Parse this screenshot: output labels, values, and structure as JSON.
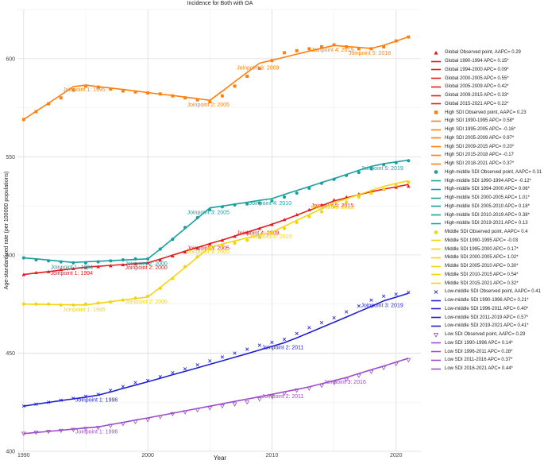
{
  "chart_data": {
    "type": "line",
    "title": "Incidence for Both with OA",
    "xlabel": "Year",
    "ylabel": "Age-standardized rate (per 100000 populations)",
    "xlim": [
      1989.5,
      2022
    ],
    "ylim": [
      400,
      625
    ],
    "x_ticks": [
      1990,
      2000,
      2010,
      2020
    ],
    "y_ticks": [
      400,
      450,
      500,
      550,
      600
    ],
    "grid": true,
    "legend_position": "right",
    "series": [
      {
        "group": "Global",
        "color": "#e41a1c",
        "marker": "triangle",
        "x": [
          1990,
          1991,
          1992,
          1993,
          1994,
          1995,
          1996,
          1997,
          1998,
          1999,
          2000,
          2001,
          2002,
          2003,
          2004,
          2005,
          2006,
          2007,
          2008,
          2009,
          2010,
          2011,
          2012,
          2013,
          2014,
          2015,
          2016,
          2017,
          2018,
          2019,
          2020,
          2021
        ],
        "observed": [
          490,
          491,
          491.5,
          492.5,
          493,
          493.5,
          494,
          494.5,
          495,
          495.5,
          496,
          497.5,
          499.5,
          501.5,
          503.5,
          505.5,
          507.5,
          509.5,
          511.5,
          513.5,
          515.5,
          518,
          520.5,
          523,
          525.5,
          528,
          529.5,
          531,
          532.5,
          533.5,
          534.5,
          535
        ],
        "fitted": [
          490,
          490.8,
          491.5,
          492.3,
          493,
          493.8,
          494.2,
          494.7,
          495.1,
          495.6,
          496,
          497.9,
          499.9,
          501.9,
          503.8,
          505.8,
          507.6,
          509.6,
          511.6,
          513.6,
          515.6,
          517.9,
          520.3,
          522.7,
          525.1,
          527.5,
          529.1,
          530.7,
          532.2,
          533.5,
          534.7,
          535.9
        ],
        "annotations": [
          {
            "text": "Joinpoint 1: 1994",
            "x": 1994,
            "y": 493
          },
          {
            "text": "Joinpoint 2: 2000",
            "x": 2000,
            "y": 496
          },
          {
            "text": "Joinpoint 3: 2005",
            "x": 2005,
            "y": 505.8
          },
          {
            "text": "Joinpoint 4: 2009",
            "x": 2009,
            "y": 513.6
          },
          {
            "text": "Joinpoint 5: 2015",
            "x": 2015,
            "y": 527.5
          }
        ]
      },
      {
        "group": "High SDI",
        "color": "#ff7f0e",
        "marker": "square",
        "x": [
          1990,
          1991,
          1992,
          1993,
          1994,
          1995,
          1996,
          1997,
          1998,
          1999,
          2000,
          2001,
          2002,
          2003,
          2004,
          2005,
          2006,
          2007,
          2008,
          2009,
          2010,
          2011,
          2012,
          2013,
          2014,
          2015,
          2016,
          2017,
          2018,
          2019,
          2020,
          2021
        ],
        "observed": [
          569,
          573,
          577,
          580,
          584,
          586,
          585.5,
          584.5,
          583.5,
          583,
          582.5,
          582,
          581,
          580,
          579,
          578,
          581,
          586,
          591,
          595,
          599,
          603,
          604,
          605,
          606,
          607,
          606,
          605,
          605,
          606,
          609,
          611
        ],
        "fitted": [
          569,
          573.2,
          577.3,
          581.5,
          585.7,
          586.5,
          585.7,
          585,
          584.3,
          583.5,
          582.7,
          581.9,
          581.2,
          580.4,
          579.6,
          578.8,
          583.4,
          588.2,
          593,
          597.7,
          599.2,
          600.7,
          602.3,
          603.8,
          605.3,
          606.7,
          606.2,
          605.7,
          605.2,
          606.8,
          608.9,
          611.1
        ],
        "annotations": [
          {
            "text": "Joinpoint 1: 1995",
            "x": 1995,
            "y": 586.5
          },
          {
            "text": "Joinpoint 2: 2005",
            "x": 2005,
            "y": 578.8
          },
          {
            "text": "Joinpoint 3: 2009",
            "x": 2009,
            "y": 597.7
          },
          {
            "text": "Joinpoint 4: 2015",
            "x": 2015,
            "y": 606.7
          },
          {
            "text": "Joinpoint 5: 2018",
            "x": 2018,
            "y": 605.2
          }
        ]
      },
      {
        "group": "High-middle SDI",
        "color": "#1a9e9e",
        "marker": "circle",
        "x": [
          1990,
          1991,
          1992,
          1993,
          1994,
          1995,
          1996,
          1997,
          1998,
          1999,
          2000,
          2001,
          2002,
          2003,
          2004,
          2005,
          2006,
          2007,
          2008,
          2009,
          2010,
          2011,
          2012,
          2013,
          2014,
          2015,
          2016,
          2017,
          2018,
          2019,
          2020,
          2021
        ],
        "observed": [
          498.5,
          497.5,
          497,
          496.5,
          496,
          496,
          496.5,
          497,
          497.5,
          498,
          498,
          503,
          508,
          514,
          519,
          523,
          524.5,
          525.5,
          526,
          526.5,
          527.5,
          529.5,
          531.5,
          534,
          536.5,
          538.5,
          540.5,
          542,
          544,
          546,
          547,
          548
        ],
        "fitted": [
          498.5,
          498,
          497.4,
          496.8,
          496.2,
          496.5,
          496.8,
          497.1,
          497.4,
          497.7,
          498,
          503,
          508.2,
          513.4,
          518.7,
          524,
          524.9,
          525.9,
          526.8,
          527.8,
          528.7,
          530.8,
          532.8,
          534.8,
          536.9,
          538.9,
          541,
          543.1,
          545.1,
          546.5,
          547.4,
          548.3
        ],
        "annotations": [
          {
            "text": "Joinpoint 1: 1994",
            "x": 1994,
            "y": 496.2
          },
          {
            "text": "Joinpoint 2: 2000",
            "x": 2000,
            "y": 498
          },
          {
            "text": "Joinpoint 3: 2005",
            "x": 2005,
            "y": 524
          },
          {
            "text": "Joinpoint 4: 2010",
            "x": 2010,
            "y": 528.7
          },
          {
            "text": "Joinpoint 5: 2019",
            "x": 2019,
            "y": 546.5
          }
        ]
      },
      {
        "group": "Middle SDI",
        "color": "#f4d40f",
        "marker": "circle",
        "x": [
          1990,
          1991,
          1992,
          1993,
          1994,
          1995,
          1996,
          1997,
          1998,
          1999,
          2000,
          2001,
          2002,
          2003,
          2004,
          2005,
          2006,
          2007,
          2008,
          2009,
          2010,
          2011,
          2012,
          2013,
          2014,
          2015,
          2016,
          2017,
          2018,
          2019,
          2020,
          2021
        ],
        "observed": [
          475,
          475,
          475,
          474.5,
          474.5,
          475,
          475.5,
          476,
          477,
          478,
          479,
          483,
          488,
          494,
          499,
          503,
          505,
          506,
          507.5,
          509,
          511,
          513.5,
          516.5,
          519.5,
          522,
          524.5,
          527,
          529.5,
          531.5,
          533.5,
          535.5,
          537
        ],
        "fitted": [
          475,
          474.9,
          474.8,
          474.7,
          474.6,
          474.5,
          475.4,
          476.2,
          477,
          477.8,
          478.6,
          483.5,
          488.5,
          493.6,
          498.8,
          504.1,
          505.6,
          507.1,
          508.7,
          510.2,
          511.7,
          514.6,
          517.6,
          520.6,
          523.6,
          526.6,
          528.6,
          530.7,
          532.8,
          534.9,
          536.4,
          537.8
        ],
        "annotations": [
          {
            "text": "Joinpoint 1: 1995",
            "x": 1995,
            "y": 474.5
          },
          {
            "text": "Joinpoint 2: 2000",
            "x": 2000,
            "y": 478.6
          },
          {
            "text": "Joinpoint 3: 2005",
            "x": 2005,
            "y": 504.1
          },
          {
            "text": "Joinpoint 4: 2010",
            "x": 2010,
            "y": 511.7
          },
          {
            "text": "Joinpoint 5: 2015",
            "x": 2015,
            "y": 526.6
          }
        ]
      },
      {
        "group": "Low-middle SDI",
        "color": "#1f1fd6",
        "marker": "x",
        "x": [
          1990,
          1991,
          1992,
          1993,
          1994,
          1995,
          1996,
          1997,
          1998,
          1999,
          2000,
          2001,
          2002,
          2003,
          2004,
          2005,
          2006,
          2007,
          2008,
          2009,
          2010,
          2011,
          2012,
          2013,
          2014,
          2015,
          2016,
          2017,
          2018,
          2019,
          2020,
          2021
        ],
        "observed": [
          423,
          424,
          425,
          426,
          427,
          428,
          429,
          431,
          433,
          435,
          436,
          438,
          440,
          442,
          444,
          446,
          448,
          450,
          452,
          454,
          455.5,
          457,
          460,
          463,
          465.5,
          468,
          471,
          474,
          477,
          479,
          480,
          481
        ],
        "fitted": [
          423,
          424,
          424.9,
          425.8,
          426.7,
          427.6,
          428.6,
          430.2,
          432,
          433.7,
          435.4,
          437.2,
          439,
          440.7,
          442.5,
          444.3,
          446.1,
          447.9,
          449.7,
          451.6,
          453.4,
          455.3,
          457.8,
          460.4,
          463.1,
          465.7,
          468.4,
          471.1,
          473.8,
          476.6,
          478.5,
          480.5
        ],
        "annotations": [
          {
            "text": "Joinpoint 1: 1996",
            "x": 1996,
            "y": 428.6
          },
          {
            "text": "Joinpoint 2: 2011",
            "x": 2011,
            "y": 455.3
          },
          {
            "text": "Joinpoint 3: 2019",
            "x": 2019,
            "y": 476.6
          }
        ]
      },
      {
        "group": "Low SDI",
        "color": "#9b4dca",
        "marker": "triangle-down",
        "x": [
          1990,
          1991,
          1992,
          1993,
          1994,
          1995,
          1996,
          1997,
          1998,
          1999,
          2000,
          2001,
          2002,
          2003,
          2004,
          2005,
          2006,
          2007,
          2008,
          2009,
          2010,
          2011,
          2012,
          2013,
          2014,
          2015,
          2016,
          2017,
          2018,
          2019,
          2020,
          2021
        ],
        "observed": [
          409,
          409.5,
          410,
          410.5,
          411,
          411.5,
          412,
          413,
          414,
          415,
          416,
          417.5,
          419,
          420,
          421,
          422,
          423,
          424,
          425,
          426.5,
          428,
          429.5,
          431,
          432,
          433.5,
          435,
          436.5,
          438.5,
          440.5,
          442.5,
          444.5,
          446.5
        ],
        "fitted": [
          409,
          409.6,
          410.1,
          410.7,
          411.3,
          411.9,
          412.4,
          413.6,
          414.7,
          415.9,
          417,
          418.2,
          419.4,
          420.6,
          421.8,
          423,
          424.2,
          425.4,
          426.6,
          427.8,
          429,
          430.3,
          431.5,
          432.8,
          434.4,
          436,
          437.6,
          439.6,
          441.5,
          443.4,
          445.4,
          447.4
        ],
        "annotations": [
          {
            "text": "Joinpoint 1: 1996",
            "x": 1996,
            "y": 412.4
          },
          {
            "text": "Joinpoint 2: 2011",
            "x": 2011,
            "y": 430.3
          },
          {
            "text": "Joinpoint 3: 2016",
            "x": 2016,
            "y": 437.6
          }
        ]
      }
    ],
    "legend": [
      {
        "label": "Global Observed point, AAPC= 0.29",
        "color": "#e41a1c",
        "kind": "triangle"
      },
      {
        "label": "Global 1990-1994 APC= 0.15*",
        "color": "#e41a1c",
        "kind": "line"
      },
      {
        "label": "Global 1994-2000 APC= 0.09*",
        "color": "#e41a1c",
        "kind": "line"
      },
      {
        "label": "Global 2000-2005 APC= 0.55*",
        "color": "#e41a1c",
        "kind": "line"
      },
      {
        "label": "Global 2005-2009 APC= 0.42*",
        "color": "#e41a1c",
        "kind": "line"
      },
      {
        "label": "Global 2009-2015 APC= 0.33*",
        "color": "#e41a1c",
        "kind": "line"
      },
      {
        "label": "Global 2015-2021 APC= 0.22*",
        "color": "#e41a1c",
        "kind": "line"
      },
      {
        "label": "High SDI Observed point, AAPC= 0.23",
        "color": "#ff7f0e",
        "kind": "square"
      },
      {
        "label": "High SDI 1990-1995 APC= 0.58*",
        "color": "#ff7f0e",
        "kind": "line"
      },
      {
        "label": "High SDI 1995-2005 APC= -0.16*",
        "color": "#ff7f0e",
        "kind": "line"
      },
      {
        "label": "High SDI 2005-2009 APC= 0.97*",
        "color": "#ff7f0e",
        "kind": "line"
      },
      {
        "label": "High SDI 2009-2015 APC= 0.20*",
        "color": "#ff7f0e",
        "kind": "line"
      },
      {
        "label": "High SDI 2015-2018 APC= -0.17",
        "color": "#ff7f0e",
        "kind": "line"
      },
      {
        "label": "High SDI 2018-2021 APC= 0.37*",
        "color": "#ff7f0e",
        "kind": "line"
      },
      {
        "label": "High-middle SDI Observed point, AAPC= 0.31",
        "color": "#1a9e9e",
        "kind": "circle"
      },
      {
        "label": "High-middle SDI 1990-1994 APC= -0.12*",
        "color": "#1a9e9e",
        "kind": "line"
      },
      {
        "label": "High-middle SDI 1994-2000 APC= 0.06*",
        "color": "#1a9e9e",
        "kind": "line"
      },
      {
        "label": "High-middle SDI 2000-2005 APC= 1.01*",
        "color": "#1a9e9e",
        "kind": "line"
      },
      {
        "label": "High-middle SDI 2005-2010 APC= 0.18*",
        "color": "#1a9e9e",
        "kind": "line"
      },
      {
        "label": "High-middle SDI 2010-2019 APC= 0.38*",
        "color": "#1a9e9e",
        "kind": "line"
      },
      {
        "label": "High-middle SDI 2019-2021 APC= 0.13",
        "color": "#1a9e9e",
        "kind": "line"
      },
      {
        "label": "Middle SDI Observed point, AAPC= 0.4",
        "color": "#f4d40f",
        "kind": "circle"
      },
      {
        "label": "Middle SDI 1990-1995 APC= -0.03",
        "color": "#f4d40f",
        "kind": "line"
      },
      {
        "label": "Middle SDI 1995-2000 APC= 0.17*",
        "color": "#f4d40f",
        "kind": "line"
      },
      {
        "label": "Middle SDI 2000-2005 APC= 1.02*",
        "color": "#f4d40f",
        "kind": "line"
      },
      {
        "label": "Middle SDI 2005-2010 APC= 0.30*",
        "color": "#f4d40f",
        "kind": "line"
      },
      {
        "label": "Middle SDI 2010-2015 APC= 0.54*",
        "color": "#f4d40f",
        "kind": "line"
      },
      {
        "label": "Middle SDI 2015-2021 APC= 0.32*",
        "color": "#f4d40f",
        "kind": "line"
      },
      {
        "label": "Low-middle SDI Observed point, AAPC= 0.41",
        "color": "#1f1fd6",
        "kind": "x"
      },
      {
        "label": "Low-middle SDI 1990-1996 APC= 0.21*",
        "color": "#1f1fd6",
        "kind": "line"
      },
      {
        "label": "Low-middle SDI 1996-2011 APC= 0.40*",
        "color": "#1f1fd6",
        "kind": "line"
      },
      {
        "label": "Low-middle SDI 2011-2019 APC= 0.57*",
        "color": "#1f1fd6",
        "kind": "line"
      },
      {
        "label": "Low-middle SDI 2019-2021 APC= 0.41*",
        "color": "#1f1fd6",
        "kind": "line"
      },
      {
        "label": "Low SDI Observed point, AAPC= 0.29",
        "color": "#9b4dca",
        "kind": "triangle-down"
      },
      {
        "label": "Low SDI 1990-1996 APC= 0.14*",
        "color": "#9b4dca",
        "kind": "line"
      },
      {
        "label": "Low SDI 1996-2011 APC= 0.28*",
        "color": "#9b4dca",
        "kind": "line"
      },
      {
        "label": "Low SDI 2011-2016 APC= 0.37*",
        "color": "#9b4dca",
        "kind": "line"
      },
      {
        "label": "Low SDI 2016-2021 APC= 0.44*",
        "color": "#9b4dca",
        "kind": "line"
      }
    ]
  }
}
